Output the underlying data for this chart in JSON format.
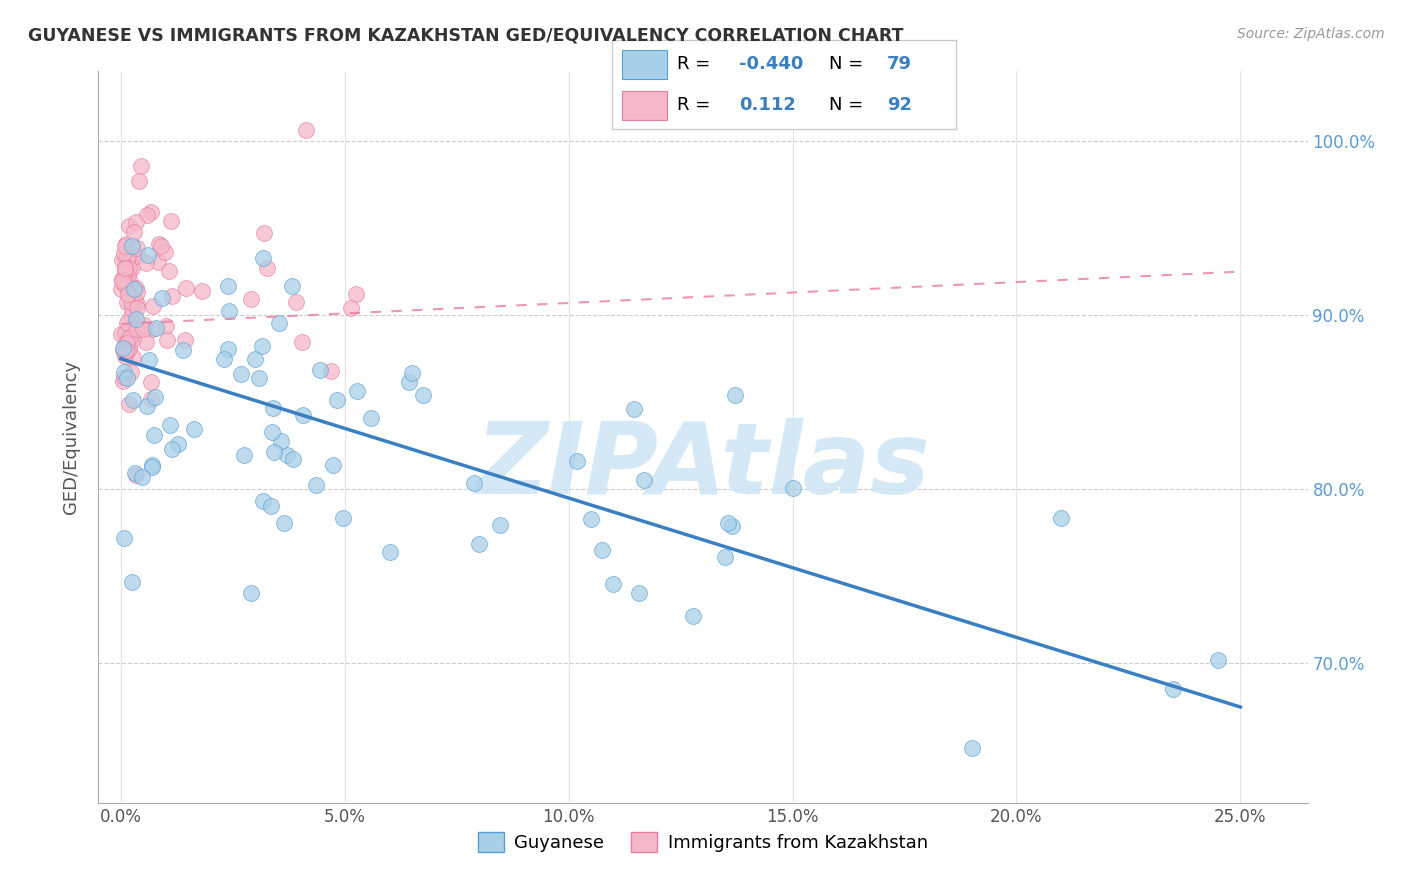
{
  "title": "GUYANESE VS IMMIGRANTS FROM KAZAKHSTAN GED/EQUIVALENCY CORRELATION CHART",
  "source": "Source: ZipAtlas.com",
  "xlabel_vals": [
    0.0,
    5.0,
    10.0,
    15.0,
    20.0,
    25.0
  ],
  "ylabel": "GED/Equivalency",
  "ylabel_vals": [
    70.0,
    80.0,
    90.0,
    100.0
  ],
  "xlim": [
    -0.5,
    26.5
  ],
  "ylim": [
    62.0,
    104.0
  ],
  "legend_R_blue": "-0.440",
  "legend_N_blue": "79",
  "legend_R_pink": "0.112",
  "legend_N_pink": "92",
  "blue_color": "#a8cfe8",
  "pink_color": "#f4b8c8",
  "blue_edge_color": "#5a9fd4",
  "pink_edge_color": "#e87ca0",
  "blue_line_color": "#3a7fc1",
  "pink_line_color": "#e87ca0",
  "watermark": "ZIPAtlas",
  "watermark_color": "#cde4f5",
  "grid_color": "#cccccc",
  "right_tick_color": "#5b9bd5",
  "title_color": "#333333",
  "source_color": "#999999"
}
